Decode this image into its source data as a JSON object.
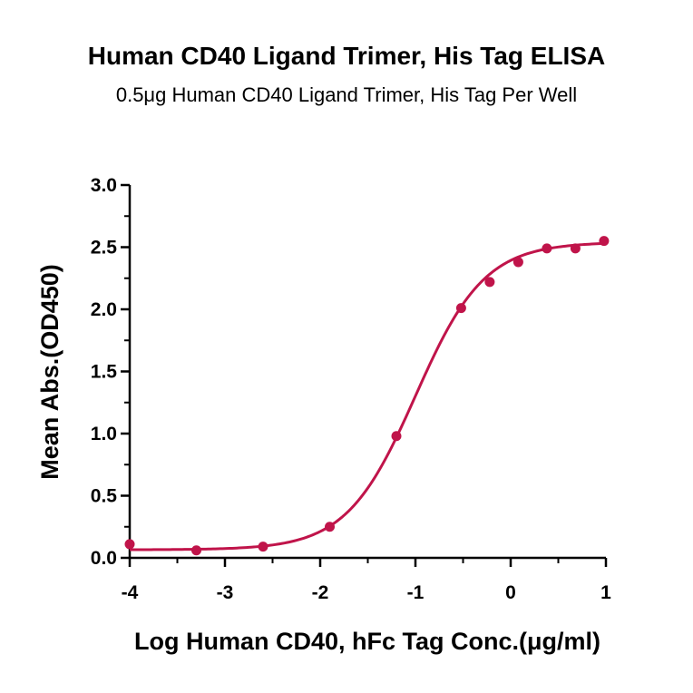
{
  "chart_data": {
    "type": "scatter",
    "title": "Human CD40 Ligand Trimer, His Tag ELISA",
    "subtitle": "0.5μg Human CD40 Ligand Trimer, His Tag Per Well",
    "xlabel": "Log Human CD40, hFc Tag Conc.(μg/ml)",
    "ylabel": "Mean Abs.(OD450)",
    "xlim": [
      -4,
      1
    ],
    "ylim": [
      0,
      3
    ],
    "x_ticks": [
      "-4",
      "-3",
      "-2",
      "-1",
      "0",
      "1"
    ],
    "y_ticks": [
      "0.0",
      "0.5",
      "1.0",
      "1.5",
      "2.0",
      "2.5",
      "3.0"
    ],
    "grid": false,
    "legend": "none",
    "series": [
      {
        "color": "#c0144a",
        "x": [
          -4.0,
          -3.3,
          -2.6,
          -1.9,
          -1.2,
          -0.52,
          -0.22,
          0.08,
          0.38,
          0.68,
          0.98
        ],
        "y": [
          0.11,
          0.06,
          0.09,
          0.25,
          0.98,
          2.01,
          2.22,
          2.38,
          2.49,
          2.49,
          2.55
        ]
      }
    ],
    "fit_curve": {
      "model": "4PL",
      "bottom": 0.065,
      "top": 2.54,
      "log_ec50": -1.0,
      "hill_slope": 1.2
    }
  }
}
